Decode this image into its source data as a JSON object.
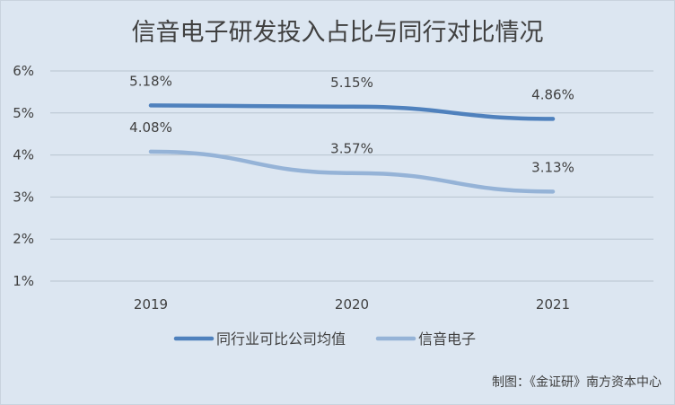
{
  "chart_data": {
    "type": "line",
    "title": "信音电子研发投入占比与同行对比情况",
    "categories": [
      "2019",
      "2020",
      "2021"
    ],
    "series": [
      {
        "name": "同行业可比公司均值",
        "values": [
          5.18,
          5.15,
          4.86
        ],
        "labels": [
          "5.18%",
          "5.15%",
          "4.86%"
        ],
        "color": "#4f81bd"
      },
      {
        "name": "信音电子",
        "values": [
          4.08,
          3.57,
          3.13
        ],
        "labels": [
          "4.08%",
          "3.57%",
          "3.13%"
        ],
        "color": "#95b3d7"
      }
    ],
    "y_ticks": [
      "1%",
      "2%",
      "3%",
      "4%",
      "5%",
      "6%"
    ],
    "ylim": [
      1,
      6
    ],
    "grid": true,
    "legend_position": "bottom"
  },
  "source": "制图：《金证研》南方资本中心",
  "colors": {
    "background": "#dce6f1",
    "grid": "#b8c4d0",
    "text": "#404040"
  }
}
